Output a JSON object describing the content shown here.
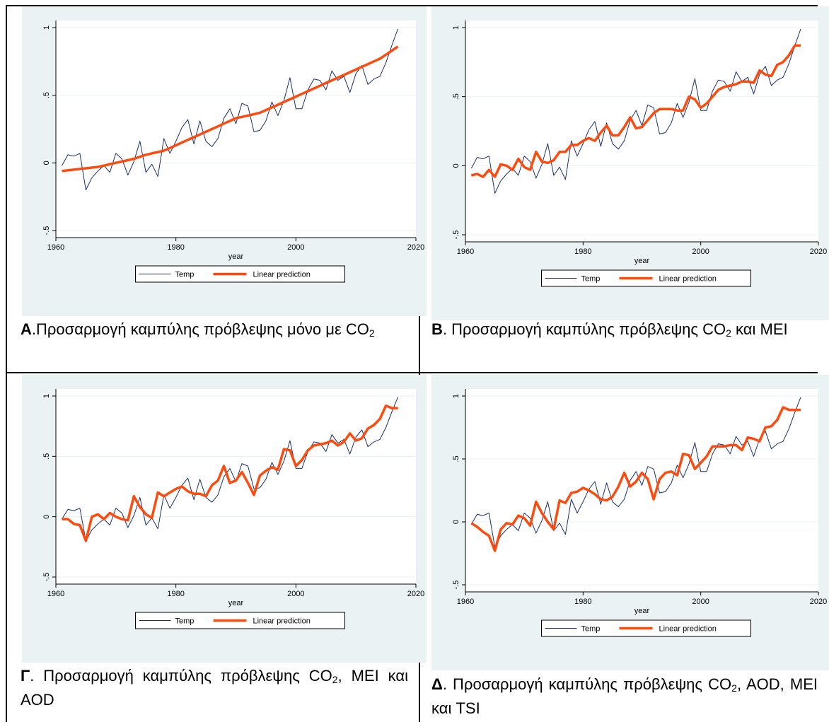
{
  "colors": {
    "panel_bg": "#eaf2f3",
    "plot_bg": "#ffffff",
    "temp_line": "#1a2f6a",
    "pred_line": "#ff4a0e",
    "grid": "#eaf2f3"
  },
  "panels": [
    {
      "caption": {
        "letter": "Α",
        "text": ".Προσαρμογή καμπύλης πρόβλεψης μόνο με CO",
        "sub": "2",
        "tail": ""
      },
      "chart_data": {
        "type": "line",
        "xlabel": "year",
        "ylabel": "",
        "xlim": [
          1960,
          2020
        ],
        "ylim": [
          -0.5,
          1
        ],
        "xticks": [
          "1960",
          "1980",
          "2000",
          "2020"
        ],
        "yticks": [
          "-.5",
          "0",
          ".5",
          "1"
        ],
        "legend": [
          "Temp",
          "Linear prediction"
        ],
        "legend_position": "bottom",
        "grid": true,
        "series": [
          {
            "name": "Temp",
            "key": "temp"
          },
          {
            "name": "Linear prediction",
            "key": "prediction_co2"
          }
        ]
      }
    },
    {
      "caption": {
        "letter": "Β",
        "text": ". Προσαρμογή καμπύλης πρόβλεψης CO",
        "sub": "2",
        "tail": " και MEI"
      },
      "chart_data": {
        "type": "line",
        "xlabel": "year",
        "ylabel": "",
        "xlim": [
          1960,
          2020
        ],
        "ylim": [
          -0.5,
          1
        ],
        "xticks": [
          "1960",
          "1980",
          "2000",
          "2020"
        ],
        "yticks": [
          "-.5",
          "0",
          ".5",
          "1"
        ],
        "legend": [
          "Temp",
          "Linear prediction"
        ],
        "legend_position": "bottom",
        "grid": true,
        "series": [
          {
            "name": "Temp",
            "key": "temp"
          },
          {
            "name": "Linear prediction",
            "key": "prediction_co2_mei"
          }
        ]
      }
    },
    {
      "caption": {
        "letter": "Γ",
        "text": ". Προσαρμογή καμπύλης πρόβλεψης CO",
        "sub": "2",
        "tail": ", MEI και AOD"
      },
      "chart_data": {
        "type": "line",
        "xlabel": "year",
        "ylabel": "",
        "xlim": [
          1960,
          2020
        ],
        "ylim": [
          -0.5,
          1
        ],
        "xticks": [
          "1960",
          "1980",
          "2000",
          "2020"
        ],
        "yticks": [
          "-.5",
          "0",
          ".5",
          "1"
        ],
        "legend": [
          "Temp",
          "Linear prediction"
        ],
        "legend_position": "bottom",
        "grid": true,
        "series": [
          {
            "name": "Temp",
            "key": "temp"
          },
          {
            "name": "Linear prediction",
            "key": "prediction_co2_mei_aod"
          }
        ]
      }
    },
    {
      "caption": {
        "letter": "Δ",
        "text": ". Προσαρμογή καμπύλης πρόβλεψης CO",
        "sub": "2",
        "tail": ", AOD, MEI και TSI"
      },
      "chart_data": {
        "type": "line",
        "xlabel": "year",
        "ylabel": "",
        "xlim": [
          1960,
          2020
        ],
        "ylim": [
          -0.5,
          1
        ],
        "xticks": [
          "1960",
          "1980",
          "2000",
          "2020"
        ],
        "yticks": [
          "-.5",
          "0",
          ".5",
          "1"
        ],
        "legend": [
          "Temp",
          "Linear prediction"
        ],
        "legend_position": "bottom",
        "grid": true,
        "series": [
          {
            "name": "Temp",
            "key": "temp"
          },
          {
            "name": "Linear prediction",
            "key": "prediction_all"
          }
        ]
      }
    }
  ],
  "chart_data": {
    "type": "line",
    "x": [
      1961,
      1962,
      1963,
      1964,
      1965,
      1966,
      1967,
      1968,
      1969,
      1970,
      1971,
      1972,
      1973,
      1974,
      1975,
      1976,
      1977,
      1978,
      1979,
      1980,
      1981,
      1982,
      1983,
      1984,
      1985,
      1986,
      1987,
      1988,
      1989,
      1990,
      1991,
      1992,
      1993,
      1994,
      1995,
      1996,
      1997,
      1998,
      1999,
      2000,
      2001,
      2002,
      2003,
      2004,
      2005,
      2006,
      2007,
      2008,
      2009,
      2010,
      2011,
      2012,
      2013,
      2014,
      2015,
      2016,
      2017
    ],
    "temp": [
      -0.02,
      0.06,
      0.05,
      0.07,
      -0.2,
      -0.11,
      -0.06,
      -0.02,
      -0.07,
      0.07,
      0.03,
      -0.09,
      0.01,
      0.16,
      -0.07,
      -0.01,
      -0.1,
      0.18,
      0.07,
      0.16,
      0.26,
      0.32,
      0.14,
      0.31,
      0.16,
      0.12,
      0.18,
      0.33,
      0.4,
      0.29,
      0.44,
      0.42,
      0.23,
      0.24,
      0.31,
      0.45,
      0.35,
      0.46,
      0.63,
      0.4,
      0.4,
      0.54,
      0.62,
      0.61,
      0.54,
      0.68,
      0.61,
      0.64,
      0.52,
      0.66,
      0.72,
      0.58,
      0.62,
      0.64,
      0.74,
      0.87,
      0.99
    ],
    "prediction_co2": [
      -0.06,
      -0.055,
      -0.05,
      -0.045,
      -0.04,
      -0.035,
      -0.03,
      -0.02,
      -0.01,
      0.0,
      0.01,
      0.02,
      0.03,
      0.045,
      0.06,
      0.07,
      0.08,
      0.09,
      0.11,
      0.13,
      0.15,
      0.17,
      0.19,
      0.21,
      0.23,
      0.25,
      0.27,
      0.29,
      0.31,
      0.33,
      0.34,
      0.35,
      0.36,
      0.37,
      0.39,
      0.41,
      0.43,
      0.45,
      0.47,
      0.49,
      0.51,
      0.53,
      0.55,
      0.57,
      0.59,
      0.61,
      0.63,
      0.65,
      0.67,
      0.69,
      0.71,
      0.73,
      0.75,
      0.77,
      0.8,
      0.83,
      0.86
    ],
    "prediction_co2_mei": [
      -0.07,
      -0.06,
      -0.08,
      -0.03,
      -0.08,
      0.01,
      0.0,
      -0.03,
      0.05,
      -0.01,
      -0.03,
      0.1,
      0.03,
      0.02,
      0.04,
      0.1,
      0.1,
      0.15,
      0.15,
      0.18,
      0.2,
      0.18,
      0.24,
      0.29,
      0.22,
      0.22,
      0.28,
      0.35,
      0.27,
      0.28,
      0.33,
      0.38,
      0.41,
      0.41,
      0.41,
      0.4,
      0.4,
      0.5,
      0.48,
      0.42,
      0.45,
      0.5,
      0.55,
      0.57,
      0.58,
      0.59,
      0.61,
      0.61,
      0.6,
      0.69,
      0.66,
      0.65,
      0.73,
      0.75,
      0.8,
      0.87,
      0.87
    ],
    "prediction_co2_mei_aod": [
      -0.02,
      -0.02,
      -0.06,
      -0.07,
      -0.2,
      0.0,
      0.02,
      -0.02,
      0.03,
      0.0,
      -0.02,
      -0.03,
      0.17,
      0.08,
      0.02,
      -0.01,
      0.2,
      0.17,
      0.2,
      0.23,
      0.25,
      0.21,
      0.19,
      0.19,
      0.17,
      0.26,
      0.3,
      0.42,
      0.28,
      0.3,
      0.37,
      0.28,
      0.18,
      0.34,
      0.38,
      0.41,
      0.39,
      0.56,
      0.55,
      0.42,
      0.47,
      0.55,
      0.59,
      0.6,
      0.61,
      0.63,
      0.59,
      0.62,
      0.69,
      0.63,
      0.65,
      0.73,
      0.76,
      0.81,
      0.92,
      0.9,
      0.9
    ],
    "prediction_all": [
      -0.01,
      -0.04,
      -0.08,
      -0.11,
      -0.23,
      -0.06,
      -0.01,
      -0.02,
      0.05,
      0.03,
      -0.03,
      0.16,
      0.07,
      0.0,
      -0.06,
      0.17,
      0.15,
      0.23,
      0.24,
      0.27,
      0.25,
      0.22,
      0.18,
      0.17,
      0.2,
      0.28,
      0.39,
      0.28,
      0.32,
      0.39,
      0.34,
      0.18,
      0.34,
      0.39,
      0.4,
      0.37,
      0.54,
      0.53,
      0.42,
      0.47,
      0.52,
      0.6,
      0.6,
      0.6,
      0.61,
      0.61,
      0.57,
      0.67,
      0.66,
      0.64,
      0.75,
      0.76,
      0.81,
      0.91,
      0.89,
      0.89,
      0.89
    ]
  }
}
